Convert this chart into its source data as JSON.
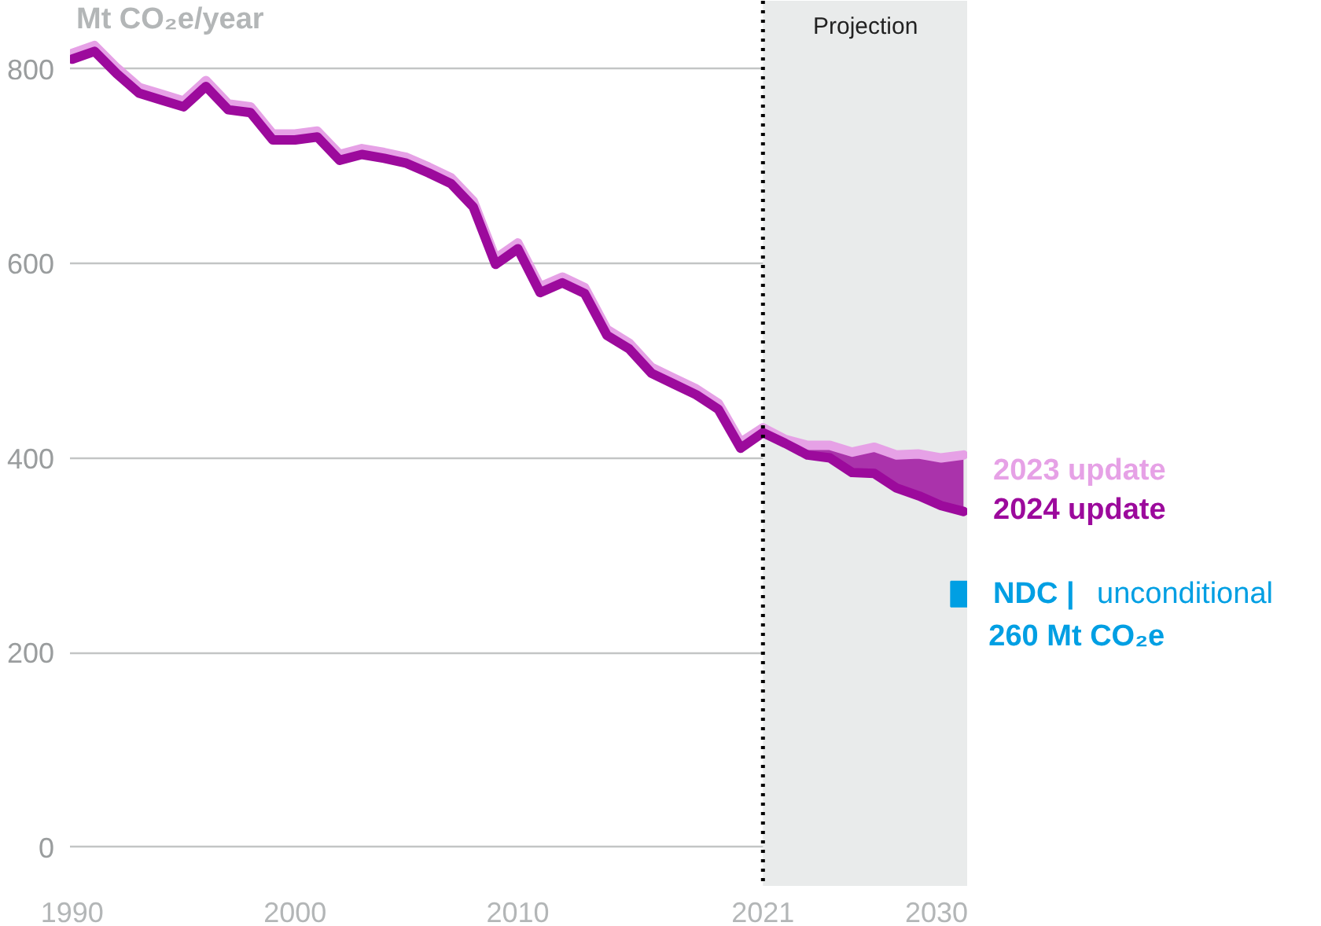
{
  "chart_data": {
    "type": "line",
    "ylabel": "Mt CO₂e/year",
    "x": [
      1990,
      1991,
      1992,
      1993,
      1994,
      1995,
      1996,
      1997,
      1998,
      1999,
      2000,
      2001,
      2002,
      2003,
      2004,
      2005,
      2006,
      2007,
      2008,
      2009,
      2010,
      2011,
      2012,
      2013,
      2014,
      2015,
      2016,
      2017,
      2018,
      2019,
      2020,
      2021,
      2022,
      2023,
      2024,
      2025,
      2026,
      2027,
      2028,
      2029,
      2030
    ],
    "series": [
      {
        "name": "2023 update",
        "color": "#e6a1e6",
        "values": [
          816,
          824,
          801,
          781,
          774,
          767,
          788,
          764,
          761,
          733,
          733,
          736,
          712,
          718,
          714,
          709,
          699,
          688,
          664,
          605,
          621,
          576,
          586,
          575,
          532,
          518,
          493,
          482,
          471,
          456,
          416,
          431,
          419,
          413,
          413,
          406,
          411,
          403,
          404,
          400,
          403
        ]
      },
      {
        "name": "2024 update",
        "color": "#9c0a9c",
        "values": [
          810,
          818,
          795,
          775,
          768,
          761,
          782,
          758,
          755,
          727,
          727,
          730,
          706,
          712,
          708,
          703,
          693,
          682,
          658,
          599,
          615,
          570,
          580,
          569,
          526,
          512,
          487,
          476,
          465,
          450,
          410,
          426,
          415,
          403,
          400,
          385,
          384,
          369,
          361,
          351,
          345
        ],
        "upper": [
          null,
          null,
          null,
          null,
          null,
          null,
          null,
          null,
          null,
          null,
          null,
          null,
          null,
          null,
          null,
          null,
          null,
          null,
          null,
          null,
          null,
          null,
          null,
          null,
          null,
          null,
          null,
          null,
          null,
          null,
          null,
          431,
          419,
          413,
          413,
          406,
          411,
          403,
          404,
          400,
          403
        ],
        "lower": [
          null,
          null,
          null,
          null,
          null,
          null,
          null,
          null,
          null,
          null,
          null,
          null,
          null,
          null,
          null,
          null,
          null,
          null,
          null,
          null,
          null,
          null,
          null,
          null,
          null,
          null,
          null,
          null,
          null,
          null,
          null,
          426,
          415,
          403,
          400,
          385,
          384,
          369,
          361,
          351,
          345
        ]
      },
      {
        "name": "NDC | unconditional",
        "type": "scatter",
        "marker": "square",
        "color": "#009fe3",
        "x": [
          2030
        ],
        "values": [
          260
        ]
      }
    ],
    "annotations": [
      {
        "text": "260 Mt CO₂e",
        "x": 2030,
        "y": 260
      }
    ],
    "xlim": [
      1989.9,
      2030.2
    ],
    "ylim": [
      -40,
      870
    ],
    "xticks": [
      1990,
      2000,
      2010,
      2021,
      2030
    ],
    "yticks": [
      0,
      200,
      400,
      600,
      800
    ],
    "grid": "y",
    "legend": "right",
    "line_style": "solid",
    "marker": "none",
    "ref_lines": [
      {
        "axis": "x",
        "value": 2021,
        "color": "#000000",
        "line_style": "dotted"
      }
    ],
    "bands": [
      {
        "axis": "x",
        "from": 2021,
        "to": 2030.2,
        "label": "Projection",
        "color": "#e9ebeb"
      }
    ]
  }
}
